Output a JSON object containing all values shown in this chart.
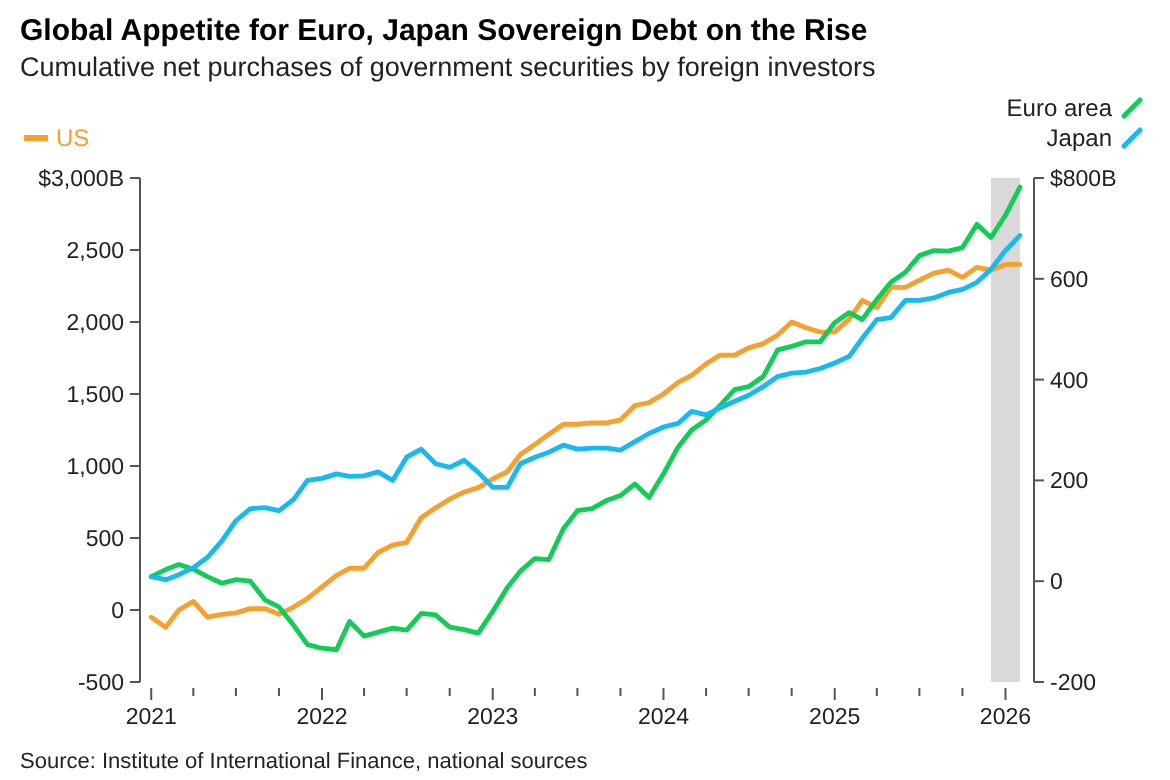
{
  "chart_data": {
    "type": "line",
    "title": "Global Appetite for Euro, Japan Sovereign Debt on the Rise",
    "subtitle": "Cumulative net purchases of government securities by foreign investors",
    "x": [
      "2021-01",
      "2021-02",
      "2021-03",
      "2021-04",
      "2021-05",
      "2021-06",
      "2021-07",
      "2021-08",
      "2021-09",
      "2021-10",
      "2021-11",
      "2021-12",
      "2022-01",
      "2022-02",
      "2022-03",
      "2022-04",
      "2022-05",
      "2022-06",
      "2022-07",
      "2022-08",
      "2022-09",
      "2022-10",
      "2022-11",
      "2022-12",
      "2023-01",
      "2023-02",
      "2023-03",
      "2023-04",
      "2023-05",
      "2023-06",
      "2023-07",
      "2023-08",
      "2023-09",
      "2023-10",
      "2023-11",
      "2023-12",
      "2024-01",
      "2024-02",
      "2024-03",
      "2024-04",
      "2024-05",
      "2024-06",
      "2024-07",
      "2024-08",
      "2024-09",
      "2024-10",
      "2024-11",
      "2024-12",
      "2025-01",
      "2025-02",
      "2025-03",
      "2025-04",
      "2025-05",
      "2025-06",
      "2025-07",
      "2025-08",
      "2025-09",
      "2025-10",
      "2025-11",
      "2025-12",
      "2026-01",
      "2026-02"
    ],
    "series": [
      {
        "name": "US",
        "color": "#f89f2e",
        "axis": "y",
        "values": [
          -50,
          -120,
          0,
          60,
          -50,
          -30,
          -20,
          10,
          10,
          -30,
          20,
          80,
          160,
          240,
          290,
          290,
          400,
          450,
          470,
          640,
          710,
          770,
          820,
          850,
          910,
          960,
          1080,
          1150,
          1220,
          1290,
          1290,
          1300,
          1300,
          1320,
          1420,
          1440,
          1500,
          1580,
          1630,
          1710,
          1770,
          1770,
          1820,
          1850,
          1910,
          2000,
          1960,
          1930,
          1930,
          2020,
          2150,
          2100,
          2240,
          2240,
          2290,
          2340,
          2360,
          2310,
          2380,
          2360,
          2400,
          2400
        ]
      },
      {
        "name": "Euro area",
        "color": "#11cc55",
        "axis": "y2",
        "values": [
          9,
          23,
          33,
          24,
          9,
          -4,
          3,
          0,
          -37,
          -51,
          -87,
          -126,
          -133,
          -136,
          -80,
          -109,
          -101,
          -93,
          -97,
          -64,
          -67,
          -91,
          -96,
          -103,
          -60,
          -13,
          20,
          45,
          43,
          104,
          140,
          144,
          160,
          170,
          193,
          166,
          213,
          266,
          300,
          320,
          349,
          380,
          386,
          406,
          459,
          466,
          475,
          475,
          513,
          533,
          519,
          559,
          593,
          613,
          646,
          656,
          655,
          662,
          708,
          682,
          726,
          782
        ]
      },
      {
        "name": "Japan",
        "color": "#17b9f2",
        "axis": "y2",
        "values": [
          9,
          3,
          13,
          27,
          47,
          80,
          120,
          144,
          146,
          140,
          162,
          200,
          204,
          213,
          208,
          209,
          217,
          200,
          246,
          262,
          233,
          226,
          240,
          216,
          186,
          186,
          233,
          246,
          256,
          270,
          262,
          264,
          264,
          260,
          277,
          293,
          306,
          313,
          337,
          330,
          344,
          357,
          369,
          386,
          406,
          413,
          415,
          422,
          433,
          446,
          482,
          519,
          523,
          557,
          557,
          562,
          573,
          579,
          593,
          619,
          656,
          686
        ]
      }
    ],
    "xlim": [
      "2020-12-08",
      "2026-03-03"
    ],
    "xticks": [
      "2021",
      {
        "value": "2021-04",
        "label": null
      },
      {
        "value": "2021-07",
        "label": null
      },
      {
        "value": "2021-10",
        "label": null
      },
      "2022",
      {
        "value": "2022-04",
        "label": null
      },
      {
        "value": "2022-07",
        "label": null
      },
      {
        "value": "2022-10",
        "label": null
      },
      "2023",
      {
        "value": "2023-04",
        "label": null
      },
      {
        "value": "2023-07",
        "label": null
      },
      {
        "value": "2023-10",
        "label": null
      },
      "2024",
      {
        "value": "2024-04",
        "label": null
      },
      {
        "value": "2024-07",
        "label": null
      },
      {
        "value": "2024-10",
        "label": null
      },
      "2025",
      {
        "value": "2025-04",
        "label": null
      },
      {
        "value": "2025-07",
        "label": null
      },
      {
        "value": "2025-10",
        "label": null
      },
      "2026"
    ],
    "ylim": [
      -500,
      3000
    ],
    "yticks": [
      -500,
      0,
      500,
      {
        "value": 1000,
        "label": "1,000"
      },
      {
        "value": 1500,
        "label": "1,500"
      },
      {
        "value": 2000,
        "label": "2,000"
      },
      {
        "value": 2500,
        "label": "2,500"
      },
      {
        "value": 3000,
        "label": "$3,000B"
      }
    ],
    "y2lim": [
      -200,
      800
    ],
    "y2ticks": [
      -200,
      0,
      200,
      400,
      600,
      {
        "value": 800,
        "label": "$800B"
      }
    ],
    "bands": [
      {
        "axis": "x",
        "from": "2025-12",
        "to": "2026-02",
        "color": "#d9d9d9"
      }
    ],
    "legend": "top",
    "grid": false,
    "annotations": [
      "Source: Institute of International Finance, national sources"
    ]
  }
}
